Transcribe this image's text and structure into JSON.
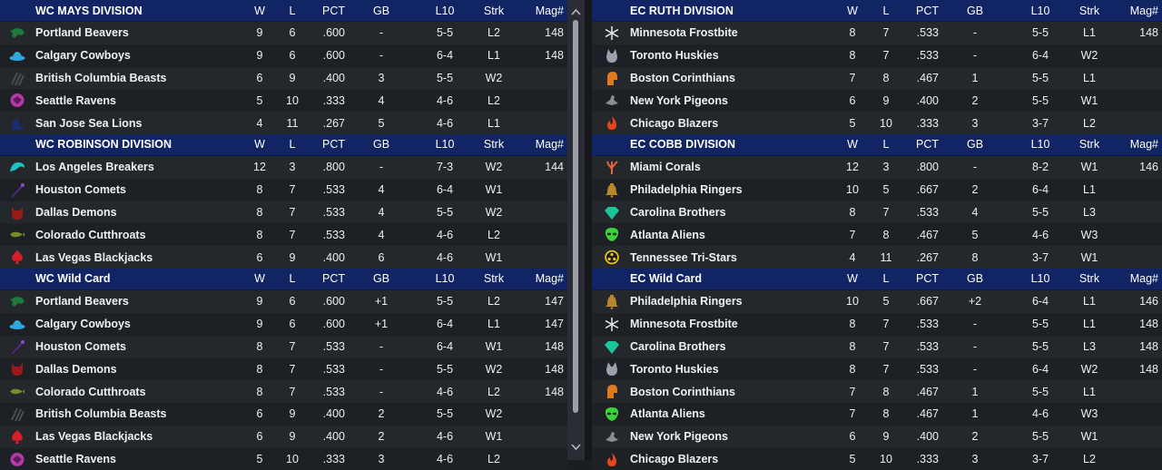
{
  "colors": {
    "header_bg": "#112565",
    "row_odd": "#24272c",
    "row_even": "#1d2024"
  },
  "columns": {
    "w": "W",
    "l": "L",
    "pct": "PCT",
    "gb": "GB",
    "l10": "L10",
    "strk": "Strk",
    "mag": "Mag#"
  },
  "left_sections": [
    {
      "title": "WC MAYS DIVISION",
      "rows": [
        {
          "logo": "beaver-logo",
          "color": "#1f7a3a",
          "team": "Portland Beavers",
          "w": "9",
          "l": "6",
          "pct": ".600",
          "gb": "-",
          "l10": "5-5",
          "strk": "L2",
          "mag": "148"
        },
        {
          "logo": "cowboy-hat-logo",
          "color": "#2ea6dc",
          "team": "Calgary Cowboys",
          "w": "9",
          "l": "6",
          "pct": ".600",
          "gb": "-",
          "l10": "6-4",
          "strk": "L1",
          "mag": "148"
        },
        {
          "logo": "claw-marks-logo",
          "color": "#4a4d52",
          "team": "British Columbia Beasts",
          "w": "6",
          "l": "9",
          "pct": ".400",
          "gb": "3",
          "l10": "5-5",
          "strk": "W2",
          "mag": ""
        },
        {
          "logo": "raven-logo",
          "color": "#b43aa8",
          "team": "Seattle Ravens",
          "w": "5",
          "l": "10",
          "pct": ".333",
          "gb": "4",
          "l10": "4-6",
          "strk": "L2",
          "mag": ""
        },
        {
          "logo": "sea-lion-logo",
          "color": "#1a2e6e",
          "team": "San Jose Sea Lions",
          "w": "4",
          "l": "11",
          "pct": ".267",
          "gb": "5",
          "l10": "4-6",
          "strk": "L1",
          "mag": ""
        }
      ]
    },
    {
      "title": "WC ROBINSON DIVISION",
      "rows": [
        {
          "logo": "wave-logo",
          "color": "#1ec4c4",
          "team": "Los Angeles Breakers",
          "w": "12",
          "l": "3",
          "pct": ".800",
          "gb": "-",
          "l10": "7-3",
          "strk": "W2",
          "mag": "144"
        },
        {
          "logo": "comet-logo",
          "color": "#5a2a88",
          "team": "Houston Comets",
          "w": "8",
          "l": "7",
          "pct": ".533",
          "gb": "4",
          "l10": "6-4",
          "strk": "W1",
          "mag": ""
        },
        {
          "logo": "demon-logo",
          "color": "#9a1a1a",
          "team": "Dallas Demons",
          "w": "8",
          "l": "7",
          "pct": ".533",
          "gb": "4",
          "l10": "5-5",
          "strk": "W2",
          "mag": ""
        },
        {
          "logo": "cutthroat-fish-logo",
          "color": "#7a8a2a",
          "team": "Colorado Cutthroats",
          "w": "8",
          "l": "7",
          "pct": ".533",
          "gb": "4",
          "l10": "4-6",
          "strk": "L2",
          "mag": ""
        },
        {
          "logo": "spade-logo",
          "color": "#d81e2a",
          "team": "Las Vegas Blackjacks",
          "w": "6",
          "l": "9",
          "pct": ".400",
          "gb": "6",
          "l10": "4-6",
          "strk": "W1",
          "mag": ""
        }
      ]
    },
    {
      "title": "WC  Wild Card",
      "rows": [
        {
          "logo": "beaver-logo",
          "color": "#1f7a3a",
          "team": "Portland Beavers",
          "w": "9",
          "l": "6",
          "pct": ".600",
          "gb": "+1",
          "l10": "5-5",
          "strk": "L2",
          "mag": "147"
        },
        {
          "logo": "cowboy-hat-logo",
          "color": "#2ea6dc",
          "team": "Calgary Cowboys",
          "w": "9",
          "l": "6",
          "pct": ".600",
          "gb": "+1",
          "l10": "6-4",
          "strk": "L1",
          "mag": "147"
        },
        {
          "logo": "comet-logo",
          "color": "#5a2a88",
          "team": "Houston Comets",
          "w": "8",
          "l": "7",
          "pct": ".533",
          "gb": "-",
          "l10": "6-4",
          "strk": "W1",
          "mag": "148"
        },
        {
          "logo": "demon-logo",
          "color": "#9a1a1a",
          "team": "Dallas Demons",
          "w": "8",
          "l": "7",
          "pct": ".533",
          "gb": "-",
          "l10": "5-5",
          "strk": "W2",
          "mag": "148"
        },
        {
          "logo": "cutthroat-fish-logo",
          "color": "#7a8a2a",
          "team": "Colorado Cutthroats",
          "w": "8",
          "l": "7",
          "pct": ".533",
          "gb": "-",
          "l10": "4-6",
          "strk": "L2",
          "mag": "148"
        },
        {
          "logo": "claw-marks-logo",
          "color": "#4a4d52",
          "team": "British Columbia Beasts",
          "w": "6",
          "l": "9",
          "pct": ".400",
          "gb": "2",
          "l10": "5-5",
          "strk": "W2",
          "mag": ""
        },
        {
          "logo": "spade-logo",
          "color": "#d81e2a",
          "team": "Las Vegas Blackjacks",
          "w": "6",
          "l": "9",
          "pct": ".400",
          "gb": "2",
          "l10": "4-6",
          "strk": "W1",
          "mag": ""
        },
        {
          "logo": "raven-logo",
          "color": "#b43aa8",
          "team": "Seattle Ravens",
          "w": "5",
          "l": "10",
          "pct": ".333",
          "gb": "3",
          "l10": "4-6",
          "strk": "L2",
          "mag": ""
        }
      ]
    }
  ],
  "right_sections": [
    {
      "title": "EC RUTH DIVISION",
      "rows": [
        {
          "logo": "snowflake-logo",
          "color": "#e8ecef",
          "team": "Minnesota Frostbite",
          "w": "8",
          "l": "7",
          "pct": ".533",
          "gb": "-",
          "l10": "5-5",
          "strk": "L1",
          "mag": "148"
        },
        {
          "logo": "husky-logo",
          "color": "#9aa3ad",
          "team": "Toronto Huskies",
          "w": "8",
          "l": "7",
          "pct": ".533",
          "gb": "-",
          "l10": "6-4",
          "strk": "W2",
          "mag": ""
        },
        {
          "logo": "spartan-helmet-logo",
          "color": "#e07a1a",
          "team": "Boston Corinthians",
          "w": "7",
          "l": "8",
          "pct": ".467",
          "gb": "1",
          "l10": "5-5",
          "strk": "L1",
          "mag": ""
        },
        {
          "logo": "pigeon-logo",
          "color": "#8a8f96",
          "team": "New York Pigeons",
          "w": "6",
          "l": "9",
          "pct": ".400",
          "gb": "2",
          "l10": "5-5",
          "strk": "W1",
          "mag": ""
        },
        {
          "logo": "flame-logo",
          "color": "#e8461a",
          "team": "Chicago Blazers",
          "w": "5",
          "l": "10",
          "pct": ".333",
          "gb": "3",
          "l10": "3-7",
          "strk": "L2",
          "mag": ""
        }
      ]
    },
    {
      "title": "EC COBB DIVISION",
      "rows": [
        {
          "logo": "coral-logo",
          "color": "#e8643a",
          "team": "Miami Corals",
          "w": "12",
          "l": "3",
          "pct": ".800",
          "gb": "-",
          "l10": "8-2",
          "strk": "W1",
          "mag": "146"
        },
        {
          "logo": "liberty-bell-logo",
          "color": "#b8882a",
          "team": "Philadelphia Ringers",
          "w": "10",
          "l": "5",
          "pct": ".667",
          "gb": "2",
          "l10": "6-4",
          "strk": "L1",
          "mag": ""
        },
        {
          "logo": "diamond-logo",
          "color": "#1ec49a",
          "team": "Carolina Brothers",
          "w": "8",
          "l": "7",
          "pct": ".533",
          "gb": "4",
          "l10": "5-5",
          "strk": "L3",
          "mag": ""
        },
        {
          "logo": "alien-head-logo",
          "color": "#3ad43a",
          "team": "Atlanta Aliens",
          "w": "7",
          "l": "8",
          "pct": ".467",
          "gb": "5",
          "l10": "4-6",
          "strk": "W3",
          "mag": ""
        },
        {
          "logo": "tri-star-logo",
          "color": "#e8c41a",
          "team": "Tennessee Tri-Stars",
          "w": "4",
          "l": "11",
          "pct": ".267",
          "gb": "8",
          "l10": "3-7",
          "strk": "W1",
          "mag": ""
        }
      ]
    },
    {
      "title": "EC  Wild Card",
      "rows": [
        {
          "logo": "liberty-bell-logo",
          "color": "#b8882a",
          "team": "Philadelphia Ringers",
          "w": "10",
          "l": "5",
          "pct": ".667",
          "gb": "+2",
          "l10": "6-4",
          "strk": "L1",
          "mag": "146"
        },
        {
          "logo": "snowflake-logo",
          "color": "#e8ecef",
          "team": "Minnesota Frostbite",
          "w": "8",
          "l": "7",
          "pct": ".533",
          "gb": "-",
          "l10": "5-5",
          "strk": "L1",
          "mag": "148"
        },
        {
          "logo": "diamond-logo",
          "color": "#1ec49a",
          "team": "Carolina Brothers",
          "w": "8",
          "l": "7",
          "pct": ".533",
          "gb": "-",
          "l10": "5-5",
          "strk": "L3",
          "mag": "148"
        },
        {
          "logo": "husky-logo",
          "color": "#9aa3ad",
          "team": "Toronto Huskies",
          "w": "8",
          "l": "7",
          "pct": ".533",
          "gb": "-",
          "l10": "6-4",
          "strk": "W2",
          "mag": "148"
        },
        {
          "logo": "spartan-helmet-logo",
          "color": "#e07a1a",
          "team": "Boston Corinthians",
          "w": "7",
          "l": "8",
          "pct": ".467",
          "gb": "1",
          "l10": "5-5",
          "strk": "L1",
          "mag": ""
        },
        {
          "logo": "alien-head-logo",
          "color": "#3ad43a",
          "team": "Atlanta Aliens",
          "w": "7",
          "l": "8",
          "pct": ".467",
          "gb": "1",
          "l10": "4-6",
          "strk": "W3",
          "mag": ""
        },
        {
          "logo": "pigeon-logo",
          "color": "#8a8f96",
          "team": "New York Pigeons",
          "w": "6",
          "l": "9",
          "pct": ".400",
          "gb": "2",
          "l10": "5-5",
          "strk": "W1",
          "mag": ""
        },
        {
          "logo": "flame-logo",
          "color": "#e8461a",
          "team": "Chicago Blazers",
          "w": "5",
          "l": "10",
          "pct": ".333",
          "gb": "3",
          "l10": "3-7",
          "strk": "L2",
          "mag": ""
        }
      ]
    }
  ],
  "scrollbar": {
    "up_icon": "chevron-up-icon",
    "down_icon": "chevron-down-icon"
  }
}
